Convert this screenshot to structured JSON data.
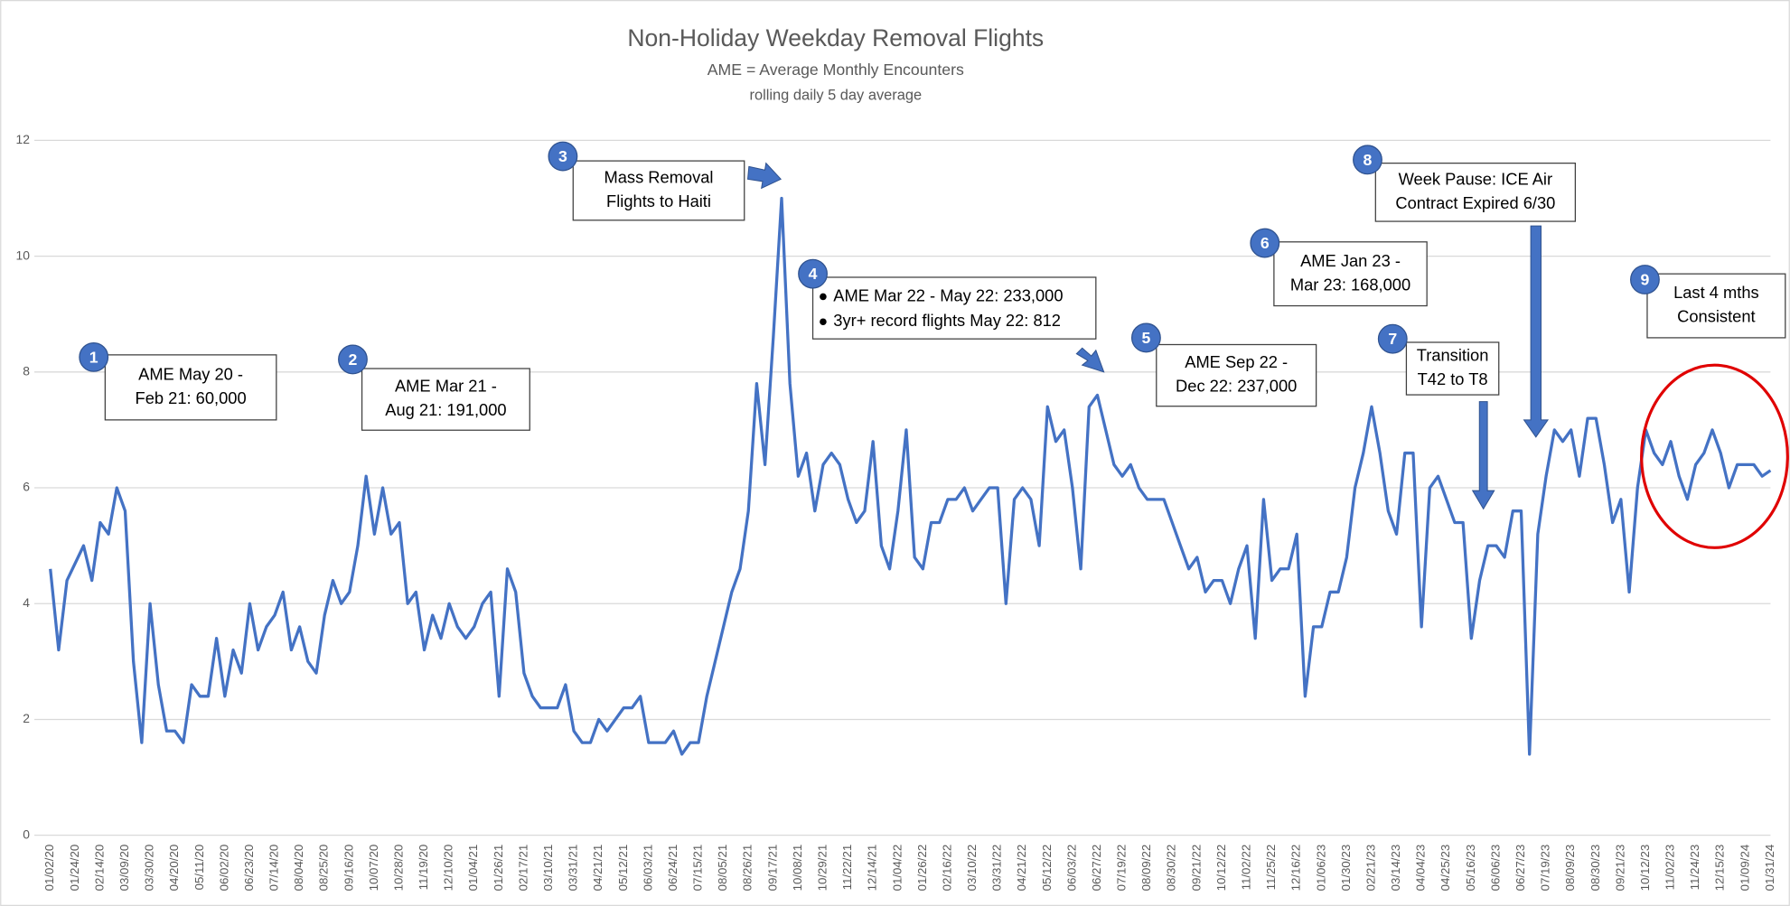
{
  "chart_data": {
    "type": "line",
    "title": "Non-Holiday Weekday Removal Flights",
    "subtitle": [
      "AME = Average Monthly Encounters",
      "rolling daily 5 day average"
    ],
    "color": "#4472c4",
    "ylim": [
      0,
      12
    ],
    "yticks": [
      0,
      2,
      4,
      6,
      8,
      10,
      12
    ],
    "grid": true,
    "categories": [
      "01/02/20",
      null,
      null,
      "01/24/20",
      null,
      null,
      "02/14/20",
      null,
      null,
      "03/09/20",
      null,
      null,
      "03/30/20",
      null,
      null,
      "04/20/20",
      null,
      null,
      "05/11/20",
      null,
      null,
      "06/02/20",
      null,
      null,
      "06/23/20",
      null,
      null,
      "07/14/20",
      null,
      null,
      "08/04/20",
      null,
      null,
      "08/25/20",
      null,
      null,
      "09/16/20",
      null,
      null,
      "10/07/20",
      null,
      null,
      "10/28/20",
      null,
      null,
      "11/19/20",
      null,
      null,
      "12/10/20",
      null,
      null,
      "01/04/21",
      null,
      null,
      "01/26/21",
      null,
      null,
      "02/17/21",
      null,
      null,
      "03/10/21",
      null,
      null,
      "03/31/21",
      null,
      null,
      "04/21/21",
      null,
      null,
      "05/12/21",
      null,
      null,
      "06/03/21",
      null,
      null,
      "06/24/21",
      null,
      null,
      "07/15/21",
      null,
      null,
      "08/05/21",
      null,
      null,
      "08/26/21",
      null,
      null,
      "09/17/21",
      null,
      null,
      "10/08/21",
      null,
      null,
      "10/29/21",
      null,
      null,
      "11/22/21",
      null,
      null,
      "12/14/21",
      null,
      null,
      "01/04/22",
      null,
      null,
      "01/26/22",
      null,
      null,
      "02/16/22",
      null,
      null,
      "03/10/22",
      null,
      null,
      "03/31/22",
      null,
      null,
      "04/21/22",
      null,
      null,
      "05/12/22",
      null,
      null,
      "06/03/22",
      null,
      null,
      "06/27/22",
      null,
      null,
      "07/19/22",
      null,
      null,
      "08/09/22",
      null,
      null,
      "08/30/22",
      null,
      null,
      "09/21/22",
      null,
      null,
      "10/12/22",
      null,
      null,
      "11/02/22",
      null,
      null,
      "11/25/22",
      null,
      null,
      "12/16/22",
      null,
      null,
      "01/06/23",
      null,
      null,
      "01/30/23",
      null,
      null,
      "02/21/23",
      null,
      null,
      "03/14/23",
      null,
      null,
      "04/04/23",
      null,
      null,
      "04/25/23",
      null,
      null,
      "05/16/23",
      null,
      null,
      "06/06/23",
      null,
      null,
      "06/27/23",
      null,
      null,
      "07/19/23",
      null,
      null,
      "08/09/23",
      null,
      null,
      "08/30/23",
      null,
      null,
      "09/21/23",
      null,
      null,
      "10/12/23",
      null,
      null,
      "11/02/23",
      null,
      null,
      "11/24/23",
      null,
      null,
      "12/15/23",
      null,
      null,
      "01/09/24",
      null,
      null,
      "01/31/24"
    ],
    "values": [
      4.6,
      3.2,
      4.4,
      4.7,
      5.0,
      4.4,
      5.4,
      5.2,
      6.0,
      5.6,
      3.0,
      1.6,
      4.0,
      2.6,
      1.8,
      1.8,
      1.6,
      2.6,
      2.4,
      2.4,
      3.4,
      2.4,
      3.2,
      2.8,
      4.0,
      3.2,
      3.6,
      3.8,
      4.2,
      3.2,
      3.6,
      3.0,
      2.8,
      3.8,
      4.4,
      4.0,
      4.2,
      5.0,
      6.2,
      5.2,
      6.0,
      5.2,
      5.4,
      4.0,
      4.2,
      3.2,
      3.8,
      3.4,
      4.0,
      3.6,
      3.4,
      3.6,
      4.0,
      4.2,
      2.4,
      4.6,
      4.2,
      2.8,
      2.4,
      2.2,
      2.2,
      2.2,
      2.6,
      1.8,
      1.6,
      1.6,
      2.0,
      1.8,
      2.0,
      2.2,
      2.2,
      2.4,
      1.6,
      1.6,
      1.6,
      1.8,
      1.4,
      1.6,
      1.6,
      2.4,
      3.0,
      3.6,
      4.2,
      4.6,
      5.6,
      7.8,
      6.4,
      8.6,
      11.0,
      7.8,
      6.2,
      6.6,
      5.6,
      6.4,
      6.6,
      6.4,
      5.8,
      5.4,
      5.6,
      6.8,
      5.0,
      4.6,
      5.6,
      7.0,
      4.8,
      4.6,
      5.4,
      5.4,
      5.8,
      5.8,
      6.0,
      5.6,
      5.8,
      6.0,
      6.0,
      4.0,
      5.8,
      6.0,
      5.8,
      5.0,
      7.4,
      6.8,
      7.0,
      6.0,
      4.6,
      7.4,
      7.6,
      7.0,
      6.4,
      6.2,
      6.4,
      6.0,
      5.8,
      5.8,
      5.8,
      5.4,
      5.0,
      4.6,
      4.8,
      4.2,
      4.4,
      4.4,
      4.0,
      4.6,
      5.0,
      3.4,
      5.8,
      4.4,
      4.6,
      4.6,
      5.2,
      2.4,
      3.6,
      3.6,
      4.2,
      4.2,
      4.8,
      6.0,
      6.6,
      7.4,
      6.6,
      5.6,
      5.2,
      6.6,
      6.6,
      3.6,
      6.0,
      6.2,
      5.8,
      5.4,
      5.4,
      3.4,
      4.4,
      5.0,
      5.0,
      4.8,
      5.6,
      5.6,
      1.4,
      5.2,
      6.2,
      7.0,
      6.8,
      7.0,
      6.2,
      7.2,
      7.2,
      6.4,
      5.4,
      5.8,
      4.2,
      6.0,
      7.0,
      6.6,
      6.4,
      6.8,
      6.2,
      5.8,
      6.4,
      6.6,
      7.0,
      6.6,
      6.0,
      6.4,
      6.4,
      6.4,
      6.2,
      6.3
    ],
    "annotations": [
      {
        "number": "1",
        "lines": [
          "AME May 20 -",
          "Feb 21: 60,000"
        ]
      },
      {
        "number": "2",
        "lines": [
          "AME Mar 21 -",
          "Aug 21: 191,000"
        ]
      },
      {
        "number": "3",
        "lines": [
          "Mass Removal",
          "Flights to Haiti"
        ]
      },
      {
        "number": "4",
        "bullets": [
          "AME Mar 22 - May 22: 233,000",
          "3yr+ record flights May 22: 812"
        ]
      },
      {
        "number": "5",
        "lines": [
          "AME Sep 22 -",
          "Dec 22: 237,000"
        ]
      },
      {
        "number": "6",
        "lines": [
          "AME Jan 23 -",
          "Mar 23: 168,000"
        ]
      },
      {
        "number": "7",
        "lines": [
          "Transition",
          "T42 to T8"
        ]
      },
      {
        "number": "8",
        "lines": [
          "Week Pause: ICE Air",
          "Contract Expired 6/30"
        ]
      },
      {
        "number": "9",
        "lines": [
          "Last 4 mths",
          "Consistent"
        ]
      }
    ]
  }
}
